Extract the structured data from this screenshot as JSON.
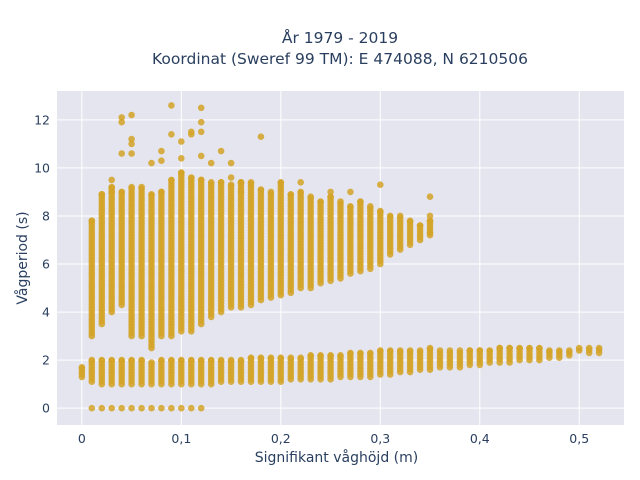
{
  "chart_data": {
    "type": "scatter",
    "title_line1": "År 1979 - 2019",
    "title_line2": "Koordinat (Sweref 99 TM): E 474088, N 6210506",
    "xlabel": "Signifikant våghöjd (m)",
    "ylabel": "Vågperiod (s)",
    "xlim": [
      -0.025,
      0.545
    ],
    "ylim": [
      -0.7,
      13.2
    ],
    "grid": true,
    "legend": "none",
    "x_ticks": [
      0,
      0.1,
      0.2,
      0.3,
      0.4,
      0.5
    ],
    "x_tick_labels": [
      "0",
      "0,1",
      "0,2",
      "0,3",
      "0,4",
      "0,5"
    ],
    "y_ticks": [
      0,
      2,
      4,
      6,
      8,
      10,
      12
    ],
    "y_tick_labels": [
      "0",
      "2",
      "4",
      "6",
      "8",
      "10",
      "12"
    ],
    "marker_color": "#d4a327",
    "plot_bg": "#e5e5ef",
    "point_clusters": {
      "zero_period": [
        [
          0.01,
          0
        ],
        [
          0.02,
          0
        ],
        [
          0.03,
          0
        ],
        [
          0.04,
          0
        ],
        [
          0.05,
          0
        ],
        [
          0.06,
          0
        ],
        [
          0.07,
          0
        ],
        [
          0.08,
          0
        ],
        [
          0.09,
          0
        ],
        [
          0.1,
          0
        ],
        [
          0.11,
          0
        ],
        [
          0.12,
          0
        ]
      ],
      "short_period_band": [
        [
          0.0,
          1.3,
          1.7
        ],
        [
          0.01,
          1.1,
          2.0
        ],
        [
          0.02,
          1.0,
          2.0
        ],
        [
          0.03,
          1.0,
          2.0
        ],
        [
          0.04,
          1.0,
          2.0
        ],
        [
          0.05,
          1.0,
          2.0
        ],
        [
          0.06,
          1.0,
          2.0
        ],
        [
          0.07,
          1.0,
          1.9
        ],
        [
          0.08,
          1.0,
          2.0
        ],
        [
          0.09,
          1.0,
          2.0
        ],
        [
          0.1,
          1.0,
          2.0
        ],
        [
          0.11,
          1.0,
          2.0
        ],
        [
          0.12,
          1.0,
          2.0
        ],
        [
          0.13,
          1.0,
          2.0
        ],
        [
          0.14,
          1.1,
          2.0
        ],
        [
          0.15,
          1.1,
          2.0
        ],
        [
          0.16,
          1.1,
          2.0
        ],
        [
          0.17,
          1.1,
          2.1
        ],
        [
          0.18,
          1.1,
          2.1
        ],
        [
          0.19,
          1.1,
          2.1
        ],
        [
          0.2,
          1.1,
          2.1
        ],
        [
          0.21,
          1.2,
          2.1
        ],
        [
          0.22,
          1.2,
          2.1
        ],
        [
          0.23,
          1.2,
          2.2
        ],
        [
          0.24,
          1.2,
          2.2
        ],
        [
          0.25,
          1.2,
          2.2
        ],
        [
          0.26,
          1.3,
          2.2
        ],
        [
          0.27,
          1.3,
          2.3
        ],
        [
          0.28,
          1.3,
          2.3
        ],
        [
          0.29,
          1.3,
          2.3
        ],
        [
          0.3,
          1.4,
          2.4
        ],
        [
          0.31,
          1.4,
          2.4
        ],
        [
          0.32,
          1.5,
          2.4
        ],
        [
          0.33,
          1.5,
          2.4
        ],
        [
          0.34,
          1.6,
          2.4
        ],
        [
          0.35,
          1.6,
          2.5
        ],
        [
          0.36,
          1.7,
          2.4
        ],
        [
          0.37,
          1.7,
          2.4
        ],
        [
          0.38,
          1.7,
          2.4
        ],
        [
          0.39,
          1.8,
          2.4
        ],
        [
          0.4,
          1.8,
          2.4
        ],
        [
          0.41,
          1.9,
          2.4
        ],
        [
          0.42,
          1.9,
          2.5
        ],
        [
          0.43,
          1.9,
          2.5
        ],
        [
          0.44,
          2.0,
          2.5
        ],
        [
          0.45,
          2.0,
          2.5
        ],
        [
          0.46,
          2.0,
          2.5
        ],
        [
          0.47,
          2.1,
          2.4
        ],
        [
          0.48,
          2.1,
          2.4
        ],
        [
          0.49,
          2.2,
          2.4
        ],
        [
          0.5,
          2.4,
          2.5
        ],
        [
          0.51,
          2.3,
          2.5
        ],
        [
          0.52,
          2.3,
          2.5
        ]
      ],
      "long_period_band": [
        [
          0.01,
          3.0,
          7.8
        ],
        [
          0.02,
          3.5,
          8.9
        ],
        [
          0.03,
          4.0,
          9.2
        ],
        [
          0.04,
          4.3,
          9.0
        ],
        [
          0.05,
          3.0,
          9.2
        ],
        [
          0.06,
          3.0,
          9.2
        ],
        [
          0.07,
          2.5,
          8.9
        ],
        [
          0.08,
          3.0,
          9.0
        ],
        [
          0.09,
          3.0,
          9.5
        ],
        [
          0.1,
          3.2,
          9.8
        ],
        [
          0.11,
          3.2,
          9.6
        ],
        [
          0.12,
          3.5,
          9.5
        ],
        [
          0.13,
          3.8,
          9.4
        ],
        [
          0.14,
          4.0,
          9.4
        ],
        [
          0.15,
          4.2,
          9.3
        ],
        [
          0.16,
          4.2,
          9.4
        ],
        [
          0.17,
          4.3,
          9.4
        ],
        [
          0.18,
          4.5,
          9.1
        ],
        [
          0.19,
          4.6,
          9.0
        ],
        [
          0.2,
          4.7,
          9.4
        ],
        [
          0.21,
          4.8,
          8.9
        ],
        [
          0.22,
          5.0,
          9.0
        ],
        [
          0.23,
          5.0,
          8.8
        ],
        [
          0.24,
          5.2,
          8.6
        ],
        [
          0.25,
          5.3,
          8.8
        ],
        [
          0.26,
          5.4,
          8.6
        ],
        [
          0.27,
          5.6,
          8.4
        ],
        [
          0.28,
          5.7,
          8.6
        ],
        [
          0.29,
          5.8,
          8.4
        ],
        [
          0.3,
          6.0,
          8.2
        ],
        [
          0.31,
          6.4,
          8.0
        ],
        [
          0.32,
          6.6,
          8.0
        ],
        [
          0.33,
          6.8,
          7.8
        ],
        [
          0.34,
          7.0,
          7.6
        ],
        [
          0.35,
          7.2,
          7.8
        ]
      ],
      "outliers": [
        [
          0.03,
          9.5
        ],
        [
          0.03,
          9.0
        ],
        [
          0.04,
          10.6
        ],
        [
          0.04,
          11.9
        ],
        [
          0.04,
          12.1
        ],
        [
          0.05,
          10.6
        ],
        [
          0.05,
          11.2
        ],
        [
          0.05,
          12.2
        ],
        [
          0.05,
          11.0
        ],
        [
          0.07,
          10.2
        ],
        [
          0.08,
          10.7
        ],
        [
          0.08,
          10.3
        ],
        [
          0.09,
          11.4
        ],
        [
          0.09,
          12.6
        ],
        [
          0.1,
          11.1
        ],
        [
          0.1,
          10.4
        ],
        [
          0.11,
          11.5
        ],
        [
          0.11,
          11.4
        ],
        [
          0.12,
          12.5
        ],
        [
          0.12,
          11.9
        ],
        [
          0.12,
          10.5
        ],
        [
          0.12,
          11.5
        ],
        [
          0.13,
          10.2
        ],
        [
          0.14,
          10.7
        ],
        [
          0.15,
          10.2
        ],
        [
          0.15,
          9.6
        ],
        [
          0.18,
          11.3
        ],
        [
          0.16,
          9.4
        ],
        [
          0.16,
          9.0
        ],
        [
          0.22,
          9.4
        ],
        [
          0.25,
          9.0
        ],
        [
          0.27,
          9.0
        ],
        [
          0.3,
          9.3
        ],
        [
          0.35,
          8.8
        ],
        [
          0.35,
          8.0
        ],
        [
          0.35,
          7.3
        ]
      ]
    }
  }
}
